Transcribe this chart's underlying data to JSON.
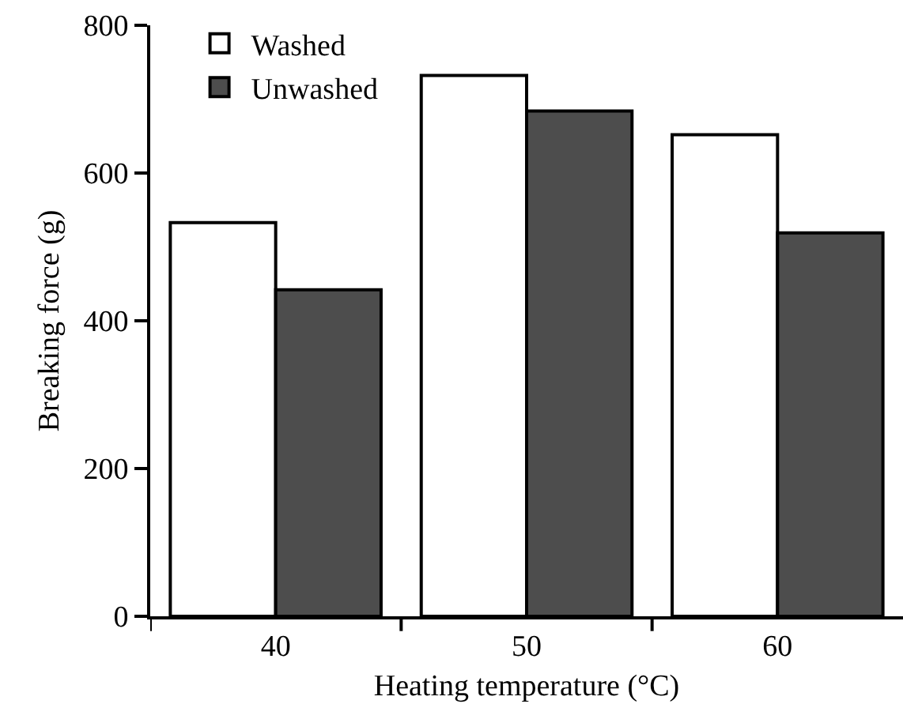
{
  "chart_data": {
    "type": "bar",
    "xlabel": "Heating temperature (°C)",
    "ylabel": "Breaking force (g)",
    "categories": [
      "40",
      "50",
      "60"
    ],
    "series": [
      {
        "name": "Washed",
        "color": "#ffffff",
        "values": [
          533,
          732,
          652
        ]
      },
      {
        "name": "Unwashed",
        "color": "#4d4d4d",
        "values": [
          442,
          684,
          519
        ]
      }
    ],
    "ylim": [
      0,
      800
    ],
    "yticks": [
      0,
      200,
      400,
      600,
      800
    ],
    "grid": false,
    "legend": "top left"
  }
}
